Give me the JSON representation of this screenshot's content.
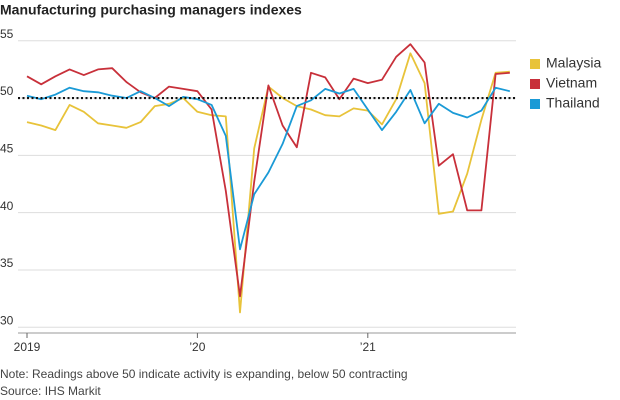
{
  "chart_data": {
    "type": "line",
    "title": "Manufacturing purchasing managers indexes",
    "note": "Note: Readings above 50 indicate activity is expanding, below 50 contracting",
    "source": "Source: IHS Markit",
    "categories": [
      "2019",
      null,
      null,
      null,
      null,
      null,
      null,
      null,
      null,
      null,
      null,
      null,
      "’20",
      null,
      null,
      null,
      null,
      null,
      null,
      null,
      null,
      null,
      null,
      null,
      "’21",
      null,
      null,
      null,
      null,
      null,
      null,
      null,
      null,
      null,
      null
    ],
    "series": [
      {
        "name": "Malaysia",
        "color": "#e8c33a",
        "values": [
          47.9,
          47.6,
          47.2,
          49.4,
          48.8,
          47.8,
          47.6,
          47.4,
          47.9,
          49.3,
          49.5,
          50.0,
          48.8,
          48.5,
          48.4,
          31.3,
          45.6,
          51.0,
          50.0,
          49.3,
          49.0,
          48.5,
          48.4,
          49.1,
          48.9,
          47.7,
          49.9,
          53.9,
          51.3,
          39.9,
          40.1,
          43.4,
          48.1,
          52.2,
          52.3
        ]
      },
      {
        "name": "Vietnam",
        "color": "#c8303a",
        "values": [
          51.9,
          51.2,
          51.9,
          52.5,
          52.0,
          52.5,
          52.6,
          51.4,
          50.5,
          50.0,
          51.0,
          50.8,
          50.6,
          49.0,
          41.9,
          32.7,
          42.7,
          51.1,
          47.6,
          45.7,
          52.2,
          51.8,
          49.9,
          51.7,
          51.3,
          51.6,
          53.6,
          54.7,
          53.1,
          44.1,
          45.1,
          40.2,
          40.2,
          52.1,
          52.2
        ]
      },
      {
        "name": "Thailand",
        "color": "#1a9ad6",
        "values": [
          50.2,
          49.9,
          50.3,
          50.9,
          50.6,
          50.5,
          50.2,
          50.0,
          50.6,
          50.0,
          49.3,
          50.1,
          49.9,
          49.4,
          46.7,
          36.8,
          41.6,
          43.5,
          46.0,
          49.3,
          49.8,
          50.8,
          50.4,
          50.8,
          49.0,
          47.2,
          48.8,
          50.7,
          47.8,
          49.5,
          48.7,
          48.3,
          48.9,
          50.9,
          50.6
        ]
      }
    ],
    "reference_line": 50,
    "ylim": [
      29.5,
      55.5
    ],
    "yticks": [
      30,
      35,
      40,
      45,
      50,
      55
    ],
    "grid": true
  }
}
